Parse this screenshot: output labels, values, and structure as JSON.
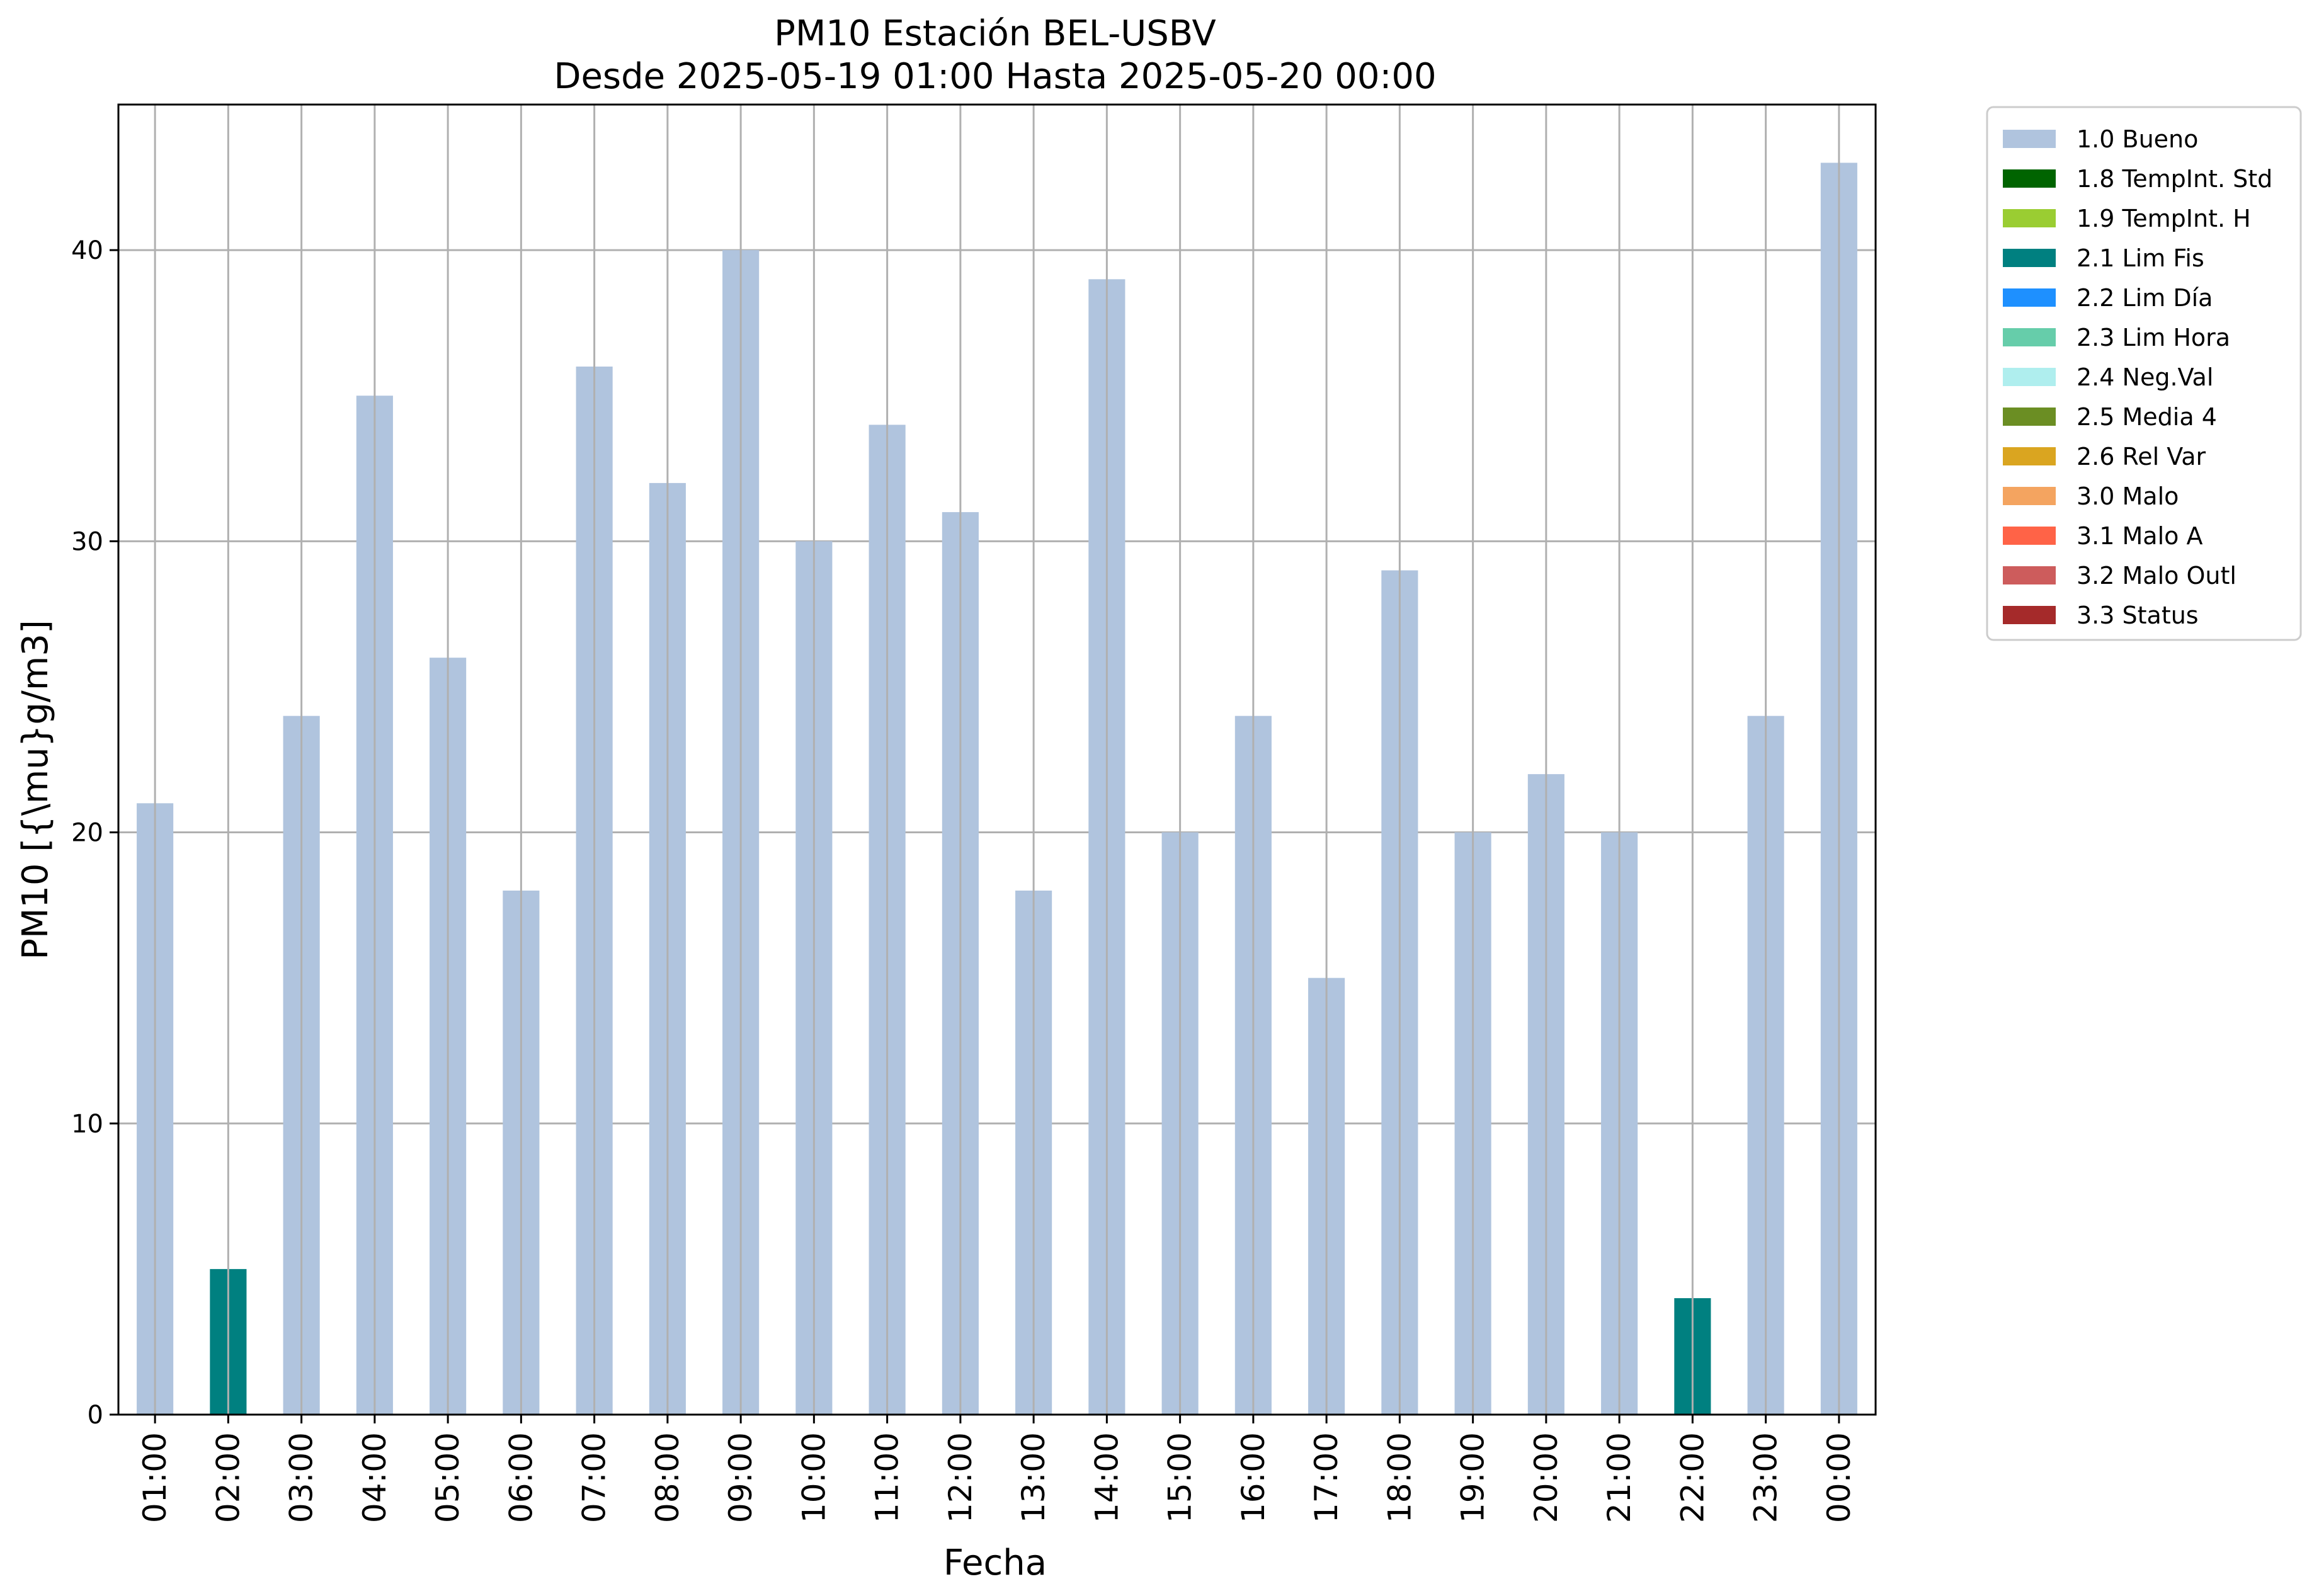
{
  "chart_data": {
    "type": "bar",
    "title": "PM10 Estación BEL-USBV",
    "subtitle": "Desde 2025-05-19 01:00 Hasta 2025-05-20 00:00",
    "xlabel": "Fecha",
    "ylabel": "PM10 [{\\mu}g/m3]",
    "ylim": [
      0,
      45
    ],
    "yticks": [
      0,
      10,
      20,
      30,
      40
    ],
    "grid": true,
    "legend_position": "outside-top-right",
    "categories": [
      "01:00",
      "02:00",
      "03:00",
      "04:00",
      "05:00",
      "06:00",
      "07:00",
      "08:00",
      "09:00",
      "10:00",
      "11:00",
      "12:00",
      "13:00",
      "14:00",
      "15:00",
      "16:00",
      "17:00",
      "18:00",
      "19:00",
      "20:00",
      "21:00",
      "22:00",
      "23:00",
      "00:00"
    ],
    "values": [
      21,
      5,
      24,
      35,
      26,
      18,
      36,
      32,
      40,
      30,
      34,
      31,
      18,
      39,
      20,
      24,
      15,
      29,
      20,
      22,
      20,
      4,
      24,
      43
    ],
    "flags": [
      "1.0 Bueno",
      "2.1 Lim Fis",
      "1.0 Bueno",
      "1.0 Bueno",
      "1.0 Bueno",
      "1.0 Bueno",
      "1.0 Bueno",
      "1.0 Bueno",
      "1.0 Bueno",
      "1.0 Bueno",
      "1.0 Bueno",
      "1.0 Bueno",
      "1.0 Bueno",
      "1.0 Bueno",
      "1.0 Bueno",
      "1.0 Bueno",
      "1.0 Bueno",
      "1.0 Bueno",
      "1.0 Bueno",
      "1.0 Bueno",
      "1.0 Bueno",
      "2.1 Lim Fis",
      "1.0 Bueno",
      "1.0 Bueno"
    ],
    "legend": [
      {
        "name": "1.0 Bueno",
        "color": "#b0c4de"
      },
      {
        "name": "1.8 TempInt. Std",
        "color": "#006400"
      },
      {
        "name": "1.9 TempInt. H",
        "color": "#9acd32"
      },
      {
        "name": "2.1 Lim Fis",
        "color": "#008080"
      },
      {
        "name": "2.2 Lim Día",
        "color": "#1e90ff"
      },
      {
        "name": "2.3 Lim Hora",
        "color": "#66cdaa"
      },
      {
        "name": "2.4 Neg.Val",
        "color": "#afeeee"
      },
      {
        "name": "2.5 Media 4",
        "color": "#6b8e23"
      },
      {
        "name": "2.6 Rel Var",
        "color": "#daa520"
      },
      {
        "name": "3.0 Malo",
        "color": "#f4a460"
      },
      {
        "name": "3.1 Malo A",
        "color": "#ff6347"
      },
      {
        "name": "3.2 Malo Outl",
        "color": "#cd5c5c"
      },
      {
        "name": "3.3 Status",
        "color": "#a52a2a"
      }
    ]
  }
}
